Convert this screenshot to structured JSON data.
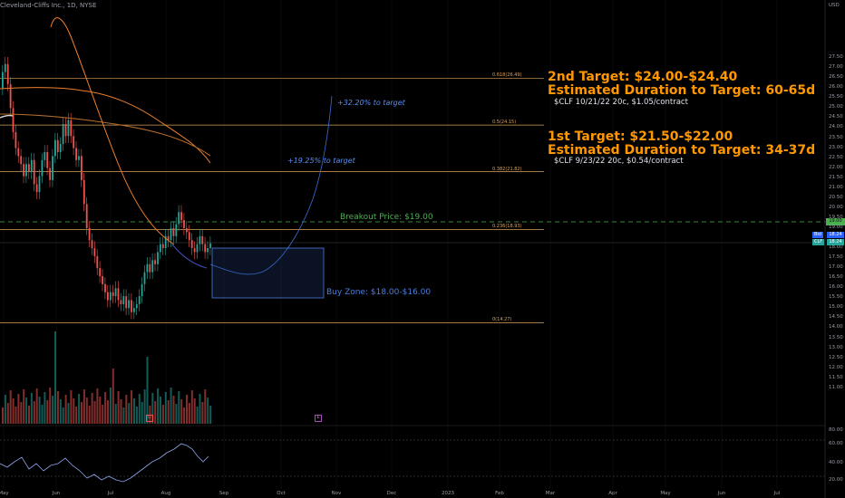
{
  "header": {
    "title": "Cleveland-Cliffs Inc., 1D, NYSE"
  },
  "currency": "USD",
  "y_axis": {
    "ticks": [
      "27.50",
      "27.00",
      "26.50",
      "26.00",
      "25.50",
      "25.00",
      "24.50",
      "24.00",
      "23.50",
      "23.00",
      "22.50",
      "22.00",
      "21.50",
      "21.00",
      "20.50",
      "20.00",
      "19.50",
      "19.00",
      "18.50",
      "18.00",
      "17.50",
      "17.00",
      "16.50",
      "16.00",
      "15.50",
      "15.00",
      "14.50",
      "14.00",
      "13.50",
      "13.00",
      "12.50",
      "12.00",
      "11.50",
      "11.00"
    ]
  },
  "osc_axis": {
    "ticks": [
      "80.00",
      "60.00",
      "40.00",
      "20.00"
    ]
  },
  "x_axis": {
    "labels": [
      "May",
      "Jun",
      "Jul",
      "Aug",
      "Sep",
      "Oct",
      "Nov",
      "Dec",
      "2023",
      "Feb",
      "Mar",
      "Apr",
      "May",
      "Jun",
      "Jul"
    ]
  },
  "fib_levels": [
    {
      "label": "0.618(26.49)",
      "price": 26.49
    },
    {
      "label": "0.5(24.15)",
      "price": 24.15
    },
    {
      "label": "0.382(21.82)",
      "price": 21.82
    },
    {
      "label": "0.236(18.93)",
      "price": 18.93
    },
    {
      "label": "0(14.27)",
      "price": 14.27
    }
  ],
  "annotations": {
    "target2_title": "2nd Target: $24.00-$24.40",
    "target2_duration": "Estimated Duration to Target: 60-65d",
    "target2_option": "$CLF 10/21/22 20c, $1.05/contract",
    "target1_title": "1st Target: $21.50-$22.00",
    "target1_duration": "Estimated Duration to Target: 34-37d",
    "target1_option": "$CLF 9/23/22 20c, $0.54/contract",
    "breakout": "Breakout Price: $19.00",
    "buy_zone": "Buy Zone: $18.00-$16.00",
    "pct_target2": "+32.20% to target",
    "pct_target1": "+19.25% to target"
  },
  "price_labels": {
    "breakout_level": "19.00",
    "bid_label": "Bid",
    "bid_value": "18.24",
    "clf_label": "CLF",
    "clf_value": "18.24"
  },
  "volume_markers": {
    "marker1": "D",
    "marker2": "E"
  },
  "colors": {
    "up": "#26a69a",
    "down": "#ef5350",
    "fib": "#d9a15a",
    "accent": "#ff9800",
    "buyzone": "#4c7fe0",
    "breakout": "#4caf50"
  }
}
